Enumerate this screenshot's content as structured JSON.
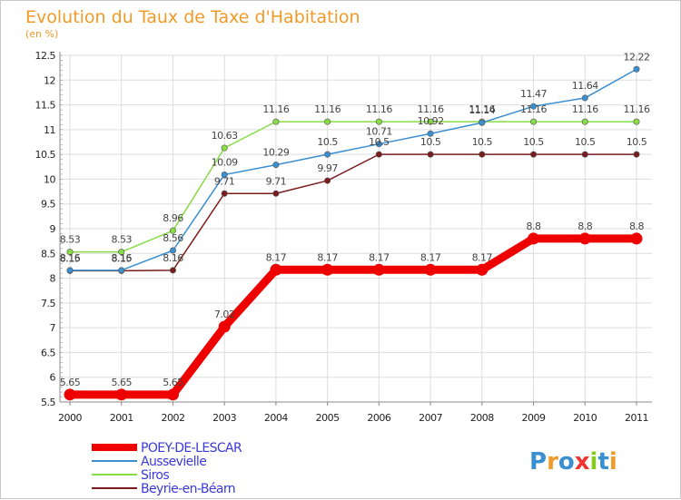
{
  "chart_data": {
    "type": "line",
    "title": "Evolution du Taux de Taxe d'Habitation",
    "subtitle": "(en %)",
    "xlabel": "",
    "ylabel": "",
    "ylim": [
      5.5,
      12.5
    ],
    "yticks": [
      "5.5",
      "6",
      "6.5",
      "7",
      "7.5",
      "8",
      "8.5",
      "9",
      "9.5",
      "10",
      "10.5",
      "11",
      "11.5",
      "12",
      "12.5"
    ],
    "x": [
      "2000",
      "2001",
      "2002",
      "2003",
      "2004",
      "2005",
      "2006",
      "2007",
      "2008",
      "2009",
      "2010",
      "2011"
    ],
    "series": [
      {
        "name": "POEY-DE-LESCAR",
        "color": "#ee0000",
        "values": [
          5.65,
          5.65,
          5.65,
          7.02,
          8.17,
          8.17,
          8.17,
          8.17,
          8.17,
          8.8,
          8.8,
          8.8
        ],
        "labels": [
          "5.65",
          "5.65",
          "5.65",
          "7.02",
          "8.17",
          "8.17",
          "8.17",
          "8.17",
          "8.17",
          "8.8",
          "8.8",
          "8.8"
        ]
      },
      {
        "name": "Aussevielle",
        "color": "#3a8fd0",
        "values": [
          8.16,
          8.16,
          8.56,
          10.09,
          10.29,
          10.5,
          10.71,
          10.92,
          11.14,
          11.47,
          11.64,
          12.22
        ],
        "labels": [
          "8.16",
          "8.16",
          "8.56",
          "10.09",
          "10.29",
          "10.5",
          "10.71",
          "10.92",
          "11.14",
          "11.47",
          "11.64",
          "12.22"
        ]
      },
      {
        "name": "Siros",
        "color": "#88dd44",
        "values": [
          8.53,
          8.53,
          8.96,
          10.63,
          11.16,
          11.16,
          11.16,
          11.16,
          11.16,
          11.16,
          11.16,
          11.16
        ],
        "labels": [
          "8.53",
          "8.53",
          "8.96",
          "10.63",
          "11.16",
          "11.16",
          "11.16",
          "11.16",
          "11.16",
          "11.16",
          "11.16",
          "11.16"
        ]
      },
      {
        "name": "Beyrie-en-Béarn",
        "color": "#7a1c1c",
        "values": [
          8.15,
          8.15,
          8.16,
          9.71,
          9.71,
          9.97,
          10.5,
          10.5,
          10.5,
          10.5,
          10.5,
          10.5
        ],
        "labels": [
          "8.15",
          "8.15",
          "8.16",
          "9.71",
          "9.71",
          "9.97",
          "10.5",
          "10.5",
          "10.5",
          "10.5",
          "10.5",
          "10.5"
        ]
      }
    ],
    "grid": true,
    "legend_position": "bottom-left"
  },
  "brand": {
    "text": "Proxiti",
    "letter_colors": [
      "#3a8fd0",
      "#f09a28",
      "#3a8fd0",
      "#ee3333",
      "#88cc22",
      "#3a8fd0",
      "#f09a28"
    ]
  }
}
